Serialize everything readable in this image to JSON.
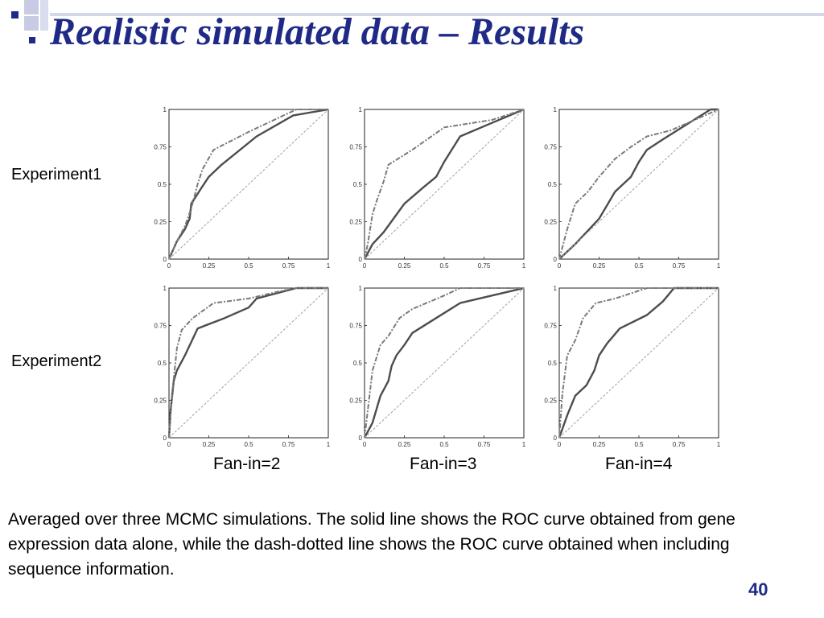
{
  "slide": {
    "title": "Realistic simulated data – Results",
    "row_labels": [
      "Experiment1",
      "Experiment2"
    ],
    "col_labels": [
      "Fan-in=2",
      "Fan-in=3",
      "Fan-in=4"
    ],
    "caption": "Averaged over three MCMC simulations. The solid line shows the ROC curve obtained from gene expression data alone, while the dash-dotted line shows the ROC curve obtained when including sequence information.",
    "page_number": "40",
    "colors": {
      "title": "#1f2a86",
      "decor": "#b9bdda",
      "solid": "#4d4d4d",
      "dashdot": "#7a7a7a",
      "diagonal": "#a0a0a0"
    }
  },
  "chart_data": [
    {
      "type": "line",
      "row": "Experiment1",
      "col": "Fan-in=2",
      "xlim": [
        0,
        1
      ],
      "ylim": [
        0,
        1
      ],
      "x_ticks": [
        "0",
        "0.25",
        "0.5",
        "0.75",
        "1"
      ],
      "y_ticks": [
        "0",
        "0.25",
        "0.5",
        "0.75",
        "1"
      ],
      "series": [
        {
          "style": "solid",
          "points": [
            [
              0,
              0
            ],
            [
              0.05,
              0.12
            ],
            [
              0.1,
              0.2
            ],
            [
              0.13,
              0.27
            ],
            [
              0.14,
              0.37
            ],
            [
              0.2,
              0.47
            ],
            [
              0.25,
              0.55
            ],
            [
              0.33,
              0.63
            ],
            [
              0.55,
              0.82
            ],
            [
              0.78,
              0.96
            ],
            [
              1,
              1
            ]
          ]
        },
        {
          "style": "dash-dot",
          "points": [
            [
              0,
              0
            ],
            [
              0.05,
              0.12
            ],
            [
              0.1,
              0.22
            ],
            [
              0.14,
              0.34
            ],
            [
              0.18,
              0.5
            ],
            [
              0.21,
              0.6
            ],
            [
              0.28,
              0.73
            ],
            [
              0.5,
              0.85
            ],
            [
              0.72,
              0.96
            ],
            [
              0.8,
              1
            ],
            [
              1,
              1
            ]
          ]
        },
        {
          "style": "diagonal",
          "points": [
            [
              0,
              0
            ],
            [
              1,
              1
            ]
          ]
        }
      ]
    },
    {
      "type": "line",
      "row": "Experiment1",
      "col": "Fan-in=3",
      "xlim": [
        0,
        1
      ],
      "ylim": [
        0,
        1
      ],
      "x_ticks": [
        "0",
        "0.25",
        "0.5",
        "0.75",
        "1"
      ],
      "y_ticks": [
        "0",
        "0.25",
        "0.5",
        "0.75",
        "1"
      ],
      "series": [
        {
          "style": "solid",
          "points": [
            [
              0,
              0
            ],
            [
              0.05,
              0.1
            ],
            [
              0.12,
              0.18
            ],
            [
              0.25,
              0.37
            ],
            [
              0.37,
              0.48
            ],
            [
              0.45,
              0.55
            ],
            [
              0.5,
              0.65
            ],
            [
              0.6,
              0.82
            ],
            [
              0.8,
              0.91
            ],
            [
              1,
              1
            ]
          ]
        },
        {
          "style": "dash-dot",
          "points": [
            [
              0,
              0
            ],
            [
              0.02,
              0.1
            ],
            [
              0.05,
              0.3
            ],
            [
              0.08,
              0.4
            ],
            [
              0.12,
              0.52
            ],
            [
              0.15,
              0.63
            ],
            [
              0.3,
              0.73
            ],
            [
              0.5,
              0.88
            ],
            [
              0.8,
              0.93
            ],
            [
              1,
              1
            ]
          ]
        },
        {
          "style": "diagonal",
          "points": [
            [
              0,
              0
            ],
            [
              1,
              1
            ]
          ]
        }
      ]
    },
    {
      "type": "line",
      "row": "Experiment1",
      "col": "Fan-in=4",
      "xlim": [
        0,
        1
      ],
      "ylim": [
        0,
        1
      ],
      "x_ticks": [
        "0",
        "0.25",
        "0.5",
        "0.75",
        "1"
      ],
      "y_ticks": [
        "0",
        "0.25",
        "0.5",
        "0.75",
        "1"
      ],
      "series": [
        {
          "style": "solid",
          "points": [
            [
              0,
              0
            ],
            [
              0.1,
              0.1
            ],
            [
              0.25,
              0.27
            ],
            [
              0.35,
              0.45
            ],
            [
              0.45,
              0.55
            ],
            [
              0.5,
              0.65
            ],
            [
              0.55,
              0.73
            ],
            [
              0.65,
              0.8
            ],
            [
              0.8,
              0.9
            ],
            [
              0.95,
              1
            ],
            [
              1,
              1
            ]
          ]
        },
        {
          "style": "dash-dot",
          "points": [
            [
              0,
              0
            ],
            [
              0.05,
              0.2
            ],
            [
              0.1,
              0.37
            ],
            [
              0.18,
              0.45
            ],
            [
              0.25,
              0.55
            ],
            [
              0.35,
              0.67
            ],
            [
              0.45,
              0.75
            ],
            [
              0.55,
              0.82
            ],
            [
              0.7,
              0.86
            ],
            [
              0.85,
              0.93
            ],
            [
              1,
              1
            ]
          ]
        },
        {
          "style": "diagonal",
          "points": [
            [
              0,
              0
            ],
            [
              1,
              1
            ]
          ]
        }
      ]
    },
    {
      "type": "line",
      "row": "Experiment2",
      "col": "Fan-in=2",
      "xlim": [
        0,
        1
      ],
      "ylim": [
        0,
        1
      ],
      "x_ticks": [
        "0",
        "0.25",
        "0.5",
        "0.75",
        "1"
      ],
      "y_ticks": [
        "0",
        "0.25",
        "0.5",
        "0.75",
        "1"
      ],
      "series": [
        {
          "style": "solid",
          "points": [
            [
              0,
              0
            ],
            [
              0.01,
              0.18
            ],
            [
              0.03,
              0.38
            ],
            [
              0.05,
              0.45
            ],
            [
              0.1,
              0.55
            ],
            [
              0.18,
              0.73
            ],
            [
              0.35,
              0.8
            ],
            [
              0.5,
              0.87
            ],
            [
              0.55,
              0.93
            ],
            [
              0.8,
              1
            ],
            [
              1,
              1
            ]
          ]
        },
        {
          "style": "dash-dot",
          "points": [
            [
              0,
              0
            ],
            [
              0.02,
              0.3
            ],
            [
              0.05,
              0.6
            ],
            [
              0.08,
              0.72
            ],
            [
              0.15,
              0.8
            ],
            [
              0.28,
              0.9
            ],
            [
              0.5,
              0.93
            ],
            [
              0.7,
              0.98
            ],
            [
              0.8,
              1
            ],
            [
              1,
              1
            ]
          ]
        },
        {
          "style": "diagonal",
          "points": [
            [
              0,
              0
            ],
            [
              1,
              1
            ]
          ]
        }
      ]
    },
    {
      "type": "line",
      "row": "Experiment2",
      "col": "Fan-in=3",
      "xlim": [
        0,
        1
      ],
      "ylim": [
        0,
        1
      ],
      "x_ticks": [
        "0",
        "0.25",
        "0.5",
        "0.75",
        "1"
      ],
      "y_ticks": [
        "0",
        "0.25",
        "0.5",
        "0.75",
        "1"
      ],
      "series": [
        {
          "style": "solid",
          "points": [
            [
              0,
              0
            ],
            [
              0.05,
              0.1
            ],
            [
              0.1,
              0.28
            ],
            [
              0.15,
              0.38
            ],
            [
              0.17,
              0.48
            ],
            [
              0.2,
              0.55
            ],
            [
              0.25,
              0.62
            ],
            [
              0.3,
              0.7
            ],
            [
              0.45,
              0.8
            ],
            [
              0.6,
              0.9
            ],
            [
              1,
              1
            ]
          ]
        },
        {
          "style": "dash-dot",
          "points": [
            [
              0,
              0
            ],
            [
              0.02,
              0.18
            ],
            [
              0.05,
              0.45
            ],
            [
              0.1,
              0.62
            ],
            [
              0.15,
              0.68
            ],
            [
              0.22,
              0.8
            ],
            [
              0.3,
              0.86
            ],
            [
              0.5,
              0.95
            ],
            [
              0.6,
              1
            ],
            [
              1,
              1
            ]
          ]
        },
        {
          "style": "diagonal",
          "points": [
            [
              0,
              0
            ],
            [
              1,
              1
            ]
          ]
        }
      ]
    },
    {
      "type": "line",
      "row": "Experiment2",
      "col": "Fan-in=4",
      "xlim": [
        0,
        1
      ],
      "ylim": [
        0,
        1
      ],
      "x_ticks": [
        "0",
        "0.25",
        "0.5",
        "0.75",
        "1"
      ],
      "y_ticks": [
        "0",
        "0.25",
        "0.5",
        "0.75",
        "1"
      ],
      "series": [
        {
          "style": "solid",
          "points": [
            [
              0,
              0
            ],
            [
              0.05,
              0.15
            ],
            [
              0.1,
              0.28
            ],
            [
              0.17,
              0.35
            ],
            [
              0.22,
              0.45
            ],
            [
              0.25,
              0.55
            ],
            [
              0.3,
              0.63
            ],
            [
              0.38,
              0.73
            ],
            [
              0.55,
              0.82
            ],
            [
              0.65,
              0.91
            ],
            [
              0.72,
              1
            ],
            [
              1,
              1
            ]
          ]
        },
        {
          "style": "dash-dot",
          "points": [
            [
              0,
              0
            ],
            [
              0.02,
              0.3
            ],
            [
              0.05,
              0.55
            ],
            [
              0.1,
              0.65
            ],
            [
              0.15,
              0.8
            ],
            [
              0.23,
              0.9
            ],
            [
              0.35,
              0.93
            ],
            [
              0.55,
              1
            ],
            [
              1,
              1
            ]
          ]
        },
        {
          "style": "diagonal",
          "points": [
            [
              0,
              0
            ],
            [
              1,
              1
            ]
          ]
        }
      ]
    }
  ]
}
